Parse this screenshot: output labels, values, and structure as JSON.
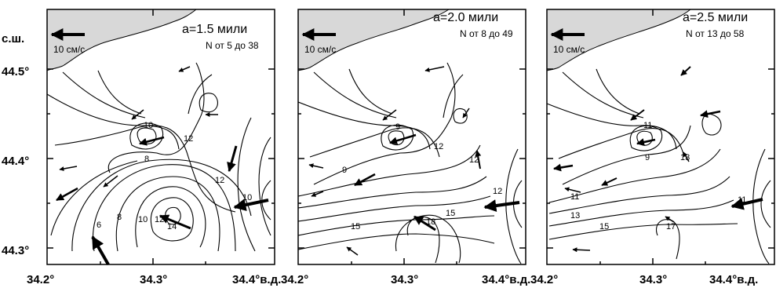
{
  "y_axis": {
    "label": "с.ш.",
    "ticks": [
      "44.5°",
      "44.4°",
      "44.3°"
    ]
  },
  "panels": [
    {
      "title": "a=1.5  мили",
      "n_range": "N от 5 до 38",
      "scale_label": "10 см/с",
      "x_ticks": [
        "34.2°",
        "34.3°",
        "34.4°в.д."
      ],
      "contour_labels": [
        "10",
        "12",
        "8",
        "12",
        "10",
        "14",
        "12",
        "10",
        "8",
        "6"
      ]
    },
    {
      "title": "a=2.0  мили",
      "n_range": "N от 8 до 49",
      "scale_label": "10 см/с",
      "x_ticks": [
        "34.2°",
        "34.3°",
        "34.4°в.д."
      ],
      "contour_labels": [
        "9",
        "12",
        "9",
        "12",
        "12",
        "15",
        "18",
        "15"
      ]
    },
    {
      "title": "a=2.5  мили",
      "n_range": "N от 13 до 58",
      "scale_label": "10 см/с",
      "x_ticks": [
        "34.2°",
        "34.3°",
        "34.4°в.д."
      ],
      "contour_labels": [
        "11",
        "9",
        "13",
        "11",
        "13",
        "11",
        "15",
        "17"
      ]
    }
  ]
}
